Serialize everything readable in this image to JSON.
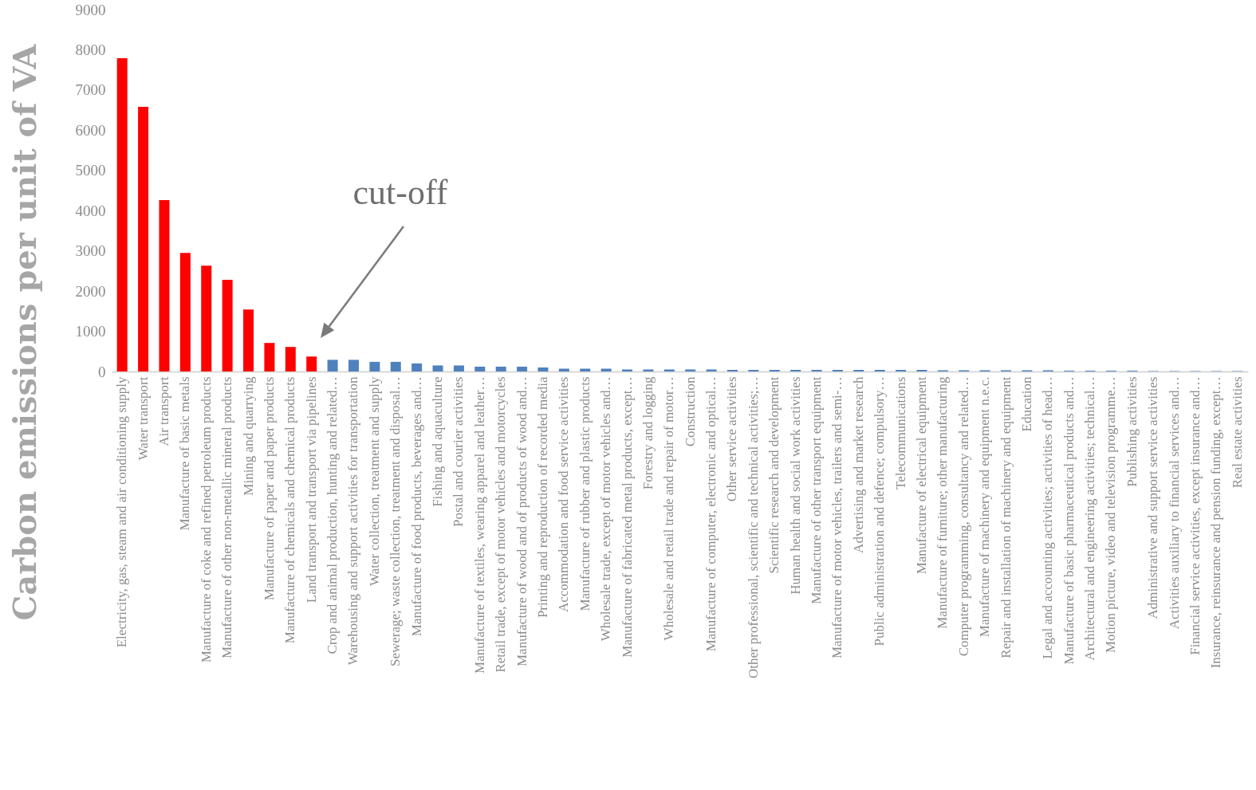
{
  "chart_data": {
    "type": "bar",
    "ylabel": "Carbon emissions per unit of VA",
    "categories": [
      "Electricity, gas, steam and air conditioning supply",
      "Water transport",
      "Air transport",
      "Manufacture of basic metals",
      "Manufacture of coke and refined petroleum products",
      "Manufacture of other non-metallic mineral products",
      "Mining and quarrying",
      "Manufacture of paper and paper products",
      "Manufacture of chemicals and chemical products",
      "Land transport and transport via pipelines",
      "Crop and animal production, hunting and related…",
      "Warehousing and support activities for transportation",
      "Water collection, treatment and supply",
      "Sewerage; waste collection, treatment and disposal…",
      "Manufacture of food products, beverages and…",
      "Fishing and aquaculture",
      "Postal and courier activities",
      "Manufacture of textiles, wearing apparel and leather…",
      "Retail trade, except of motor vehicles and motorcycles",
      "Manufacture of wood and of products of wood and…",
      "Printing and reproduction of recorded media",
      "Accommodation and food service activities",
      "Manufacture of rubber and plastic products",
      "Wholesale trade, except of motor vehicles and…",
      "Manufacture of fabricated metal products, except…",
      "Forestry and logging",
      "Wholesale and retail trade and repair of motor…",
      "Construction",
      "Manufacture of computer, electronic and optical…",
      "Other service activities",
      "Other professional, scientific and technical activities;…",
      "Scientific research and development",
      "Human health and social work activities",
      "Manufacture of other transport equipment",
      "Manufacture of motor vehicles, trailers and semi-…",
      "Advertising and market research",
      "Public administration and defence; compulsory…",
      "Telecommunications",
      "Manufacture of electrical equipment",
      "Manufacture of furniture; other manufacturing",
      "Computer programming, consultancy and related…",
      "Manufacture of machinery and equipment n.e.c.",
      "Repair and installation of machinery and equipment",
      "Education",
      "Legal and accounting activities; activities of head…",
      "Manufacture of basic pharmaceutical products and…",
      "Architectural and engineering activities; technical…",
      "Motion picture, video and television programme…",
      "Publishing activities",
      "Administrative and support service activities",
      "Activities auxiliary to financial services and…",
      "Financial service activities, except insurance and…",
      "Insurance, reinsurance and pension funding, except…",
      "Real estate activities"
    ],
    "values": [
      7790,
      6580,
      4260,
      2950,
      2630,
      2280,
      1540,
      710,
      610,
      370,
      290,
      290,
      240,
      240,
      200,
      150,
      150,
      120,
      120,
      120,
      100,
      70,
      70,
      70,
      50,
      50,
      50,
      50,
      50,
      40,
      40,
      40,
      40,
      40,
      40,
      40,
      40,
      40,
      40,
      30,
      30,
      30,
      30,
      30,
      30,
      20,
      20,
      20,
      20,
      10,
      10,
      10,
      10,
      10
    ],
    "colors": [
      "#ff0000",
      "#ff0000",
      "#ff0000",
      "#ff0000",
      "#ff0000",
      "#ff0000",
      "#ff0000",
      "#ff0000",
      "#ff0000",
      "#ff0000",
      "#4f81bd",
      "#4f81bd",
      "#4f81bd",
      "#4f81bd",
      "#4f81bd",
      "#4f81bd",
      "#4f81bd",
      "#4f81bd",
      "#4f81bd",
      "#4f81bd",
      "#4f81bd",
      "#4f81bd",
      "#4f81bd",
      "#4f81bd",
      "#4f81bd",
      "#4f81bd",
      "#4f81bd",
      "#4f81bd",
      "#4f81bd",
      "#4f81bd",
      "#4f81bd",
      "#4f81bd",
      "#4f81bd",
      "#4f81bd",
      "#4f81bd",
      "#4f81bd",
      "#4f81bd",
      "#4f81bd",
      "#4f81bd",
      "#4f81bd",
      "#4f81bd",
      "#4f81bd",
      "#4f81bd",
      "#4f81bd",
      "#4f81bd",
      "#4f81bd",
      "#4f81bd",
      "#4f81bd",
      "#4f81bd",
      "#4f81bd",
      "#4f81bd",
      "#4f81bd",
      "#4f81bd",
      "#4f81bd"
    ],
    "ylim": [
      0,
      9000
    ],
    "yticks": [
      0,
      {
        "value": 1000,
        "label": "1000"
      },
      {
        "value": 2000,
        "label": "2000"
      },
      {
        "value": 3000,
        "label": "3000"
      },
      {
        "value": 4000,
        "label": "4000"
      },
      {
        "value": 5000,
        "label": "5000"
      },
      {
        "value": 6000,
        "label": "6000"
      },
      {
        "value": 7000,
        "label": "7000"
      },
      {
        "value": 8000,
        "label": "8000"
      },
      {
        "value": 9000,
        "label": "9000"
      }
    ],
    "grid": false,
    "annotations": [
      "cut-off"
    ]
  }
}
